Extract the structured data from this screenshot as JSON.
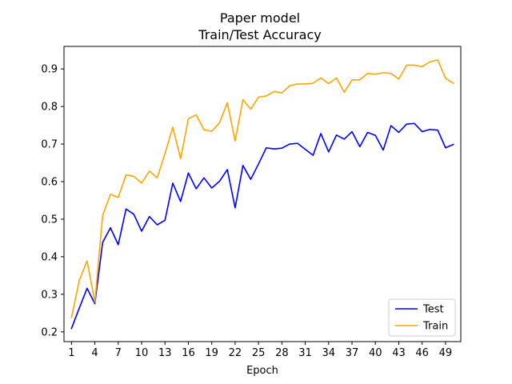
{
  "chart_data": {
    "type": "line",
    "title": "Paper model",
    "subtitle": "Train/Test Accuracy",
    "xlabel": "Epoch",
    "ylabel": "",
    "xlim": [
      0.04,
      50.96
    ],
    "ylim": [
      0.174,
      0.96
    ],
    "xticks": [
      1,
      4,
      7,
      10,
      13,
      16,
      19,
      22,
      25,
      28,
      31,
      34,
      37,
      40,
      43,
      46,
      49
    ],
    "yticks": [
      0.2,
      0.3,
      0.4,
      0.5,
      0.6,
      0.7,
      0.8,
      0.9
    ],
    "grid": false,
    "legend_position": "lower-right",
    "x": [
      1,
      2,
      3,
      4,
      5,
      6,
      7,
      8,
      9,
      10,
      11,
      12,
      13,
      14,
      15,
      16,
      17,
      18,
      19,
      20,
      21,
      22,
      23,
      24,
      25,
      26,
      27,
      28,
      29,
      30,
      31,
      32,
      33,
      34,
      35,
      36,
      37,
      38,
      39,
      40,
      41,
      42,
      43,
      44,
      45,
      46,
      47,
      48,
      49,
      50
    ],
    "series": [
      {
        "name": "Test",
        "color": "#0000ff",
        "values": [
          0.209,
          0.263,
          0.316,
          0.275,
          0.438,
          0.477,
          0.432,
          0.527,
          0.513,
          0.468,
          0.507,
          0.485,
          0.497,
          0.596,
          0.547,
          0.623,
          0.581,
          0.61,
          0.583,
          0.601,
          0.632,
          0.53,
          0.643,
          0.606,
          0.647,
          0.69,
          0.687,
          0.689,
          0.7,
          0.702,
          0.686,
          0.67,
          0.728,
          0.679,
          0.724,
          0.713,
          0.733,
          0.693,
          0.731,
          0.723,
          0.684,
          0.749,
          0.731,
          0.753,
          0.755,
          0.733,
          0.739,
          0.737,
          0.69,
          0.699
        ]
      },
      {
        "name": "Train",
        "color": "#ffa500",
        "values": [
          0.238,
          0.337,
          0.389,
          0.279,
          0.51,
          0.566,
          0.558,
          0.618,
          0.614,
          0.596,
          0.628,
          0.61,
          0.675,
          0.745,
          0.661,
          0.767,
          0.778,
          0.738,
          0.734,
          0.757,
          0.81,
          0.708,
          0.818,
          0.793,
          0.825,
          0.828,
          0.84,
          0.836,
          0.855,
          0.86,
          0.86,
          0.862,
          0.876,
          0.861,
          0.876,
          0.838,
          0.871,
          0.871,
          0.888,
          0.886,
          0.89,
          0.888,
          0.873,
          0.91,
          0.91,
          0.906,
          0.919,
          0.924,
          0.875,
          0.862
        ]
      }
    ]
  }
}
